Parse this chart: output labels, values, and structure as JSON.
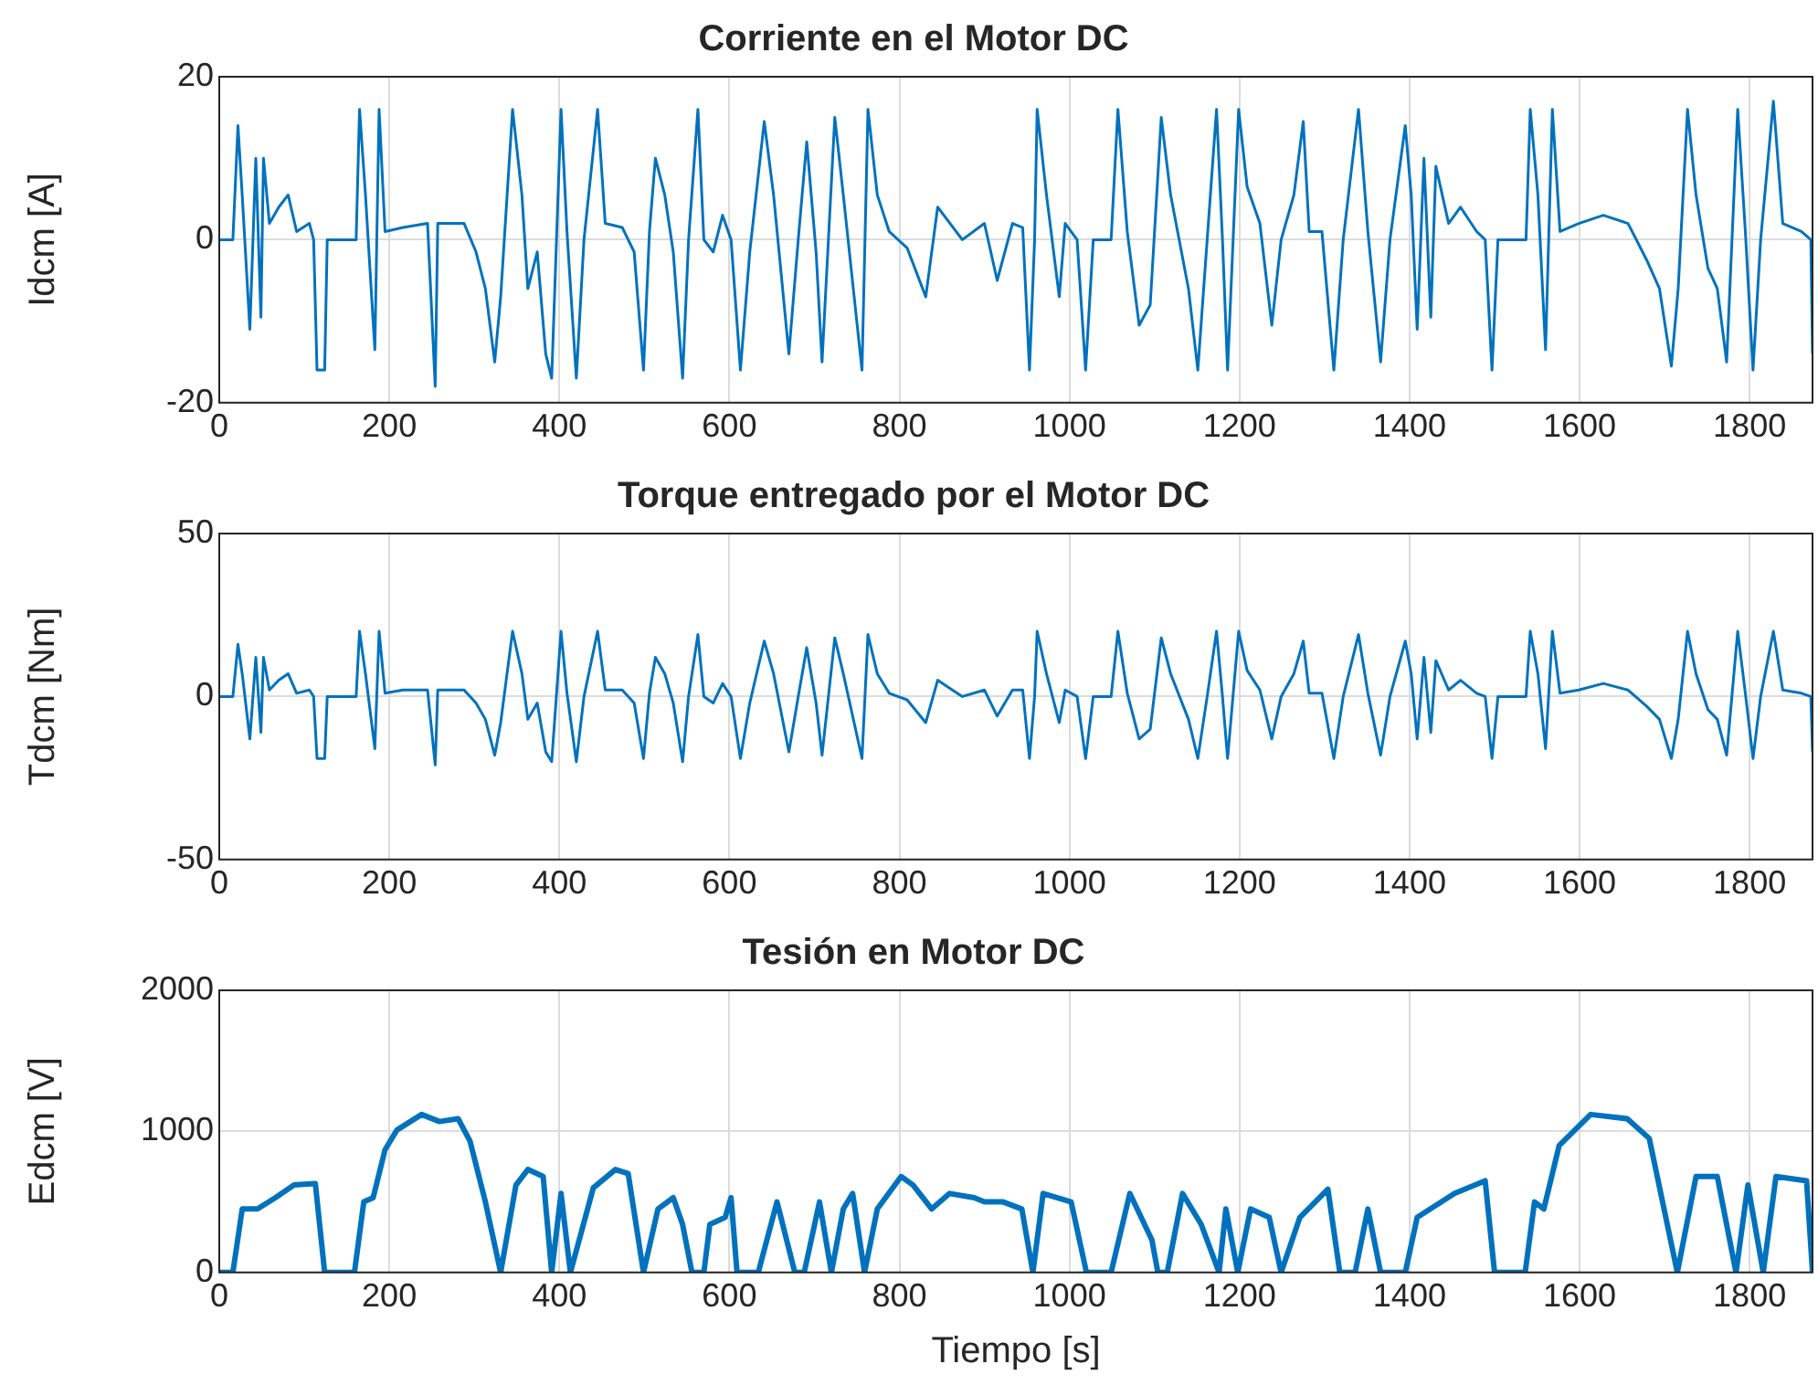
{
  "chart_data": [
    {
      "type": "line",
      "title": "Corriente en el Motor DC",
      "ylabel": "Idcm [A]",
      "color": "#0072bd",
      "marker": "none",
      "grid": true,
      "xlim": [
        0,
        1874
      ],
      "xticks": [
        0,
        200,
        400,
        600,
        800,
        1000,
        1200,
        1400,
        1600,
        1800
      ],
      "ylim": [
        -20,
        20
      ],
      "yticks": [
        -20,
        0,
        20
      ],
      "x": [
        0,
        16,
        22,
        27,
        36,
        43,
        49,
        52,
        59,
        70,
        81,
        91,
        106,
        111,
        115,
        124,
        127,
        161,
        165,
        172,
        183,
        188,
        195,
        216,
        245,
        254,
        257,
        288,
        302,
        313,
        324,
        331,
        345,
        356,
        363,
        374,
        384,
        391,
        402,
        409,
        420,
        429,
        445,
        454,
        474,
        488,
        499,
        506,
        513,
        524,
        534,
        545,
        552,
        563,
        570,
        581,
        592,
        602,
        613,
        624,
        641,
        652,
        670,
        681,
        691,
        702,
        709,
        724,
        734,
        756,
        763,
        774,
        788,
        809,
        831,
        845,
        874,
        900,
        915,
        933,
        945,
        953,
        959,
        962,
        973,
        988,
        995,
        1009,
        1019,
        1028,
        1049,
        1057,
        1068,
        1082,
        1095,
        1108,
        1119,
        1140,
        1151,
        1162,
        1173,
        1180,
        1186,
        1199,
        1209,
        1224,
        1238,
        1249,
        1264,
        1275,
        1282,
        1297,
        1311,
        1322,
        1340,
        1351,
        1366,
        1377,
        1395,
        1402,
        1409,
        1417,
        1425,
        1431,
        1446,
        1460,
        1479,
        1489,
        1497,
        1504,
        1537,
        1542,
        1551,
        1560,
        1568,
        1577,
        1599,
        1628,
        1657,
        1679,
        1694,
        1708,
        1716,
        1727,
        1737,
        1751,
        1762,
        1773,
        1786,
        1795,
        1804,
        1813,
        1828,
        1839,
        1861,
        1872,
        1874
      ],
      "values": [
        0,
        0,
        14,
        5.5,
        -11,
        10,
        -9.5,
        10,
        2,
        4,
        5.5,
        1,
        2,
        0,
        -16,
        -16,
        0,
        0,
        16,
        5.5,
        -13.5,
        16,
        1,
        1.5,
        2,
        -18,
        2,
        2,
        -1.5,
        -6,
        -15,
        -7,
        16,
        5.5,
        -6,
        -1.5,
        -14,
        -17,
        16,
        1,
        -17,
        0,
        16,
        2,
        1.5,
        -1.5,
        -16,
        1,
        10,
        5.5,
        -1.5,
        -17,
        0,
        16,
        0,
        -1.5,
        3,
        0,
        -16,
        -1.5,
        14.5,
        5.5,
        -14,
        0,
        12,
        -1.5,
        -15,
        15,
        5.5,
        -16,
        16,
        5.5,
        1,
        -1,
        -7,
        4,
        0,
        2,
        -5,
        2,
        1.5,
        -16,
        0,
        16,
        5.5,
        -7,
        2,
        0,
        -16,
        0,
        0,
        16,
        1,
        -10.5,
        -8,
        15,
        5.5,
        -6,
        -16,
        0,
        16,
        0,
        -16,
        16,
        6.5,
        2,
        -10.5,
        0,
        5.5,
        14.5,
        1,
        1,
        -16,
        0,
        16,
        1,
        -15,
        0,
        14,
        5.5,
        -11,
        10,
        -9.5,
        9,
        2,
        4,
        1,
        0,
        -16,
        0,
        0,
        16,
        5.5,
        -13.5,
        16,
        1,
        2,
        3,
        2,
        -2.5,
        -6,
        -15.5,
        -6,
        16,
        5.5,
        -3.5,
        -6,
        -15,
        16,
        1,
        -16,
        0,
        17,
        2,
        1,
        0,
        -14
      ]
    },
    {
      "type": "line",
      "title": "Torque entregado por el Motor DC",
      "ylabel": "Tdcm [Nm]",
      "color": "#0072bd",
      "marker": "none",
      "grid": true,
      "xlim": [
        0,
        1874
      ],
      "xticks": [
        0,
        200,
        400,
        600,
        800,
        1000,
        1200,
        1400,
        1600,
        1800
      ],
      "ylim": [
        -50,
        50
      ],
      "yticks": [
        -50,
        0,
        50
      ],
      "x": [
        0,
        16,
        22,
        27,
        36,
        43,
        49,
        52,
        59,
        70,
        81,
        91,
        106,
        111,
        115,
        124,
        127,
        161,
        165,
        172,
        183,
        188,
        195,
        216,
        245,
        254,
        257,
        288,
        302,
        313,
        324,
        331,
        345,
        356,
        363,
        374,
        384,
        391,
        402,
        409,
        420,
        429,
        445,
        454,
        474,
        488,
        499,
        506,
        513,
        524,
        534,
        545,
        552,
        563,
        570,
        581,
        592,
        602,
        613,
        624,
        641,
        652,
        670,
        681,
        691,
        702,
        709,
        724,
        734,
        756,
        763,
        774,
        788,
        809,
        831,
        845,
        874,
        900,
        915,
        933,
        945,
        953,
        959,
        962,
        973,
        988,
        995,
        1009,
        1019,
        1028,
        1049,
        1057,
        1068,
        1082,
        1095,
        1108,
        1119,
        1140,
        1151,
        1162,
        1173,
        1180,
        1186,
        1199,
        1209,
        1224,
        1238,
        1249,
        1264,
        1275,
        1282,
        1297,
        1311,
        1322,
        1340,
        1351,
        1366,
        1377,
        1395,
        1402,
        1409,
        1417,
        1425,
        1431,
        1446,
        1460,
        1479,
        1489,
        1497,
        1504,
        1537,
        1542,
        1551,
        1560,
        1568,
        1577,
        1599,
        1628,
        1657,
        1679,
        1694,
        1708,
        1716,
        1727,
        1737,
        1751,
        1762,
        1773,
        1786,
        1795,
        1804,
        1813,
        1828,
        1839,
        1861,
        1872,
        1874
      ],
      "values": [
        0,
        0,
        16,
        7,
        -13,
        12,
        -11,
        12,
        2,
        5,
        7,
        1,
        2,
        0,
        -19,
        -19,
        0,
        0,
        20,
        7,
        -16,
        20,
        1,
        2,
        2,
        -21,
        2,
        2,
        -2,
        -7,
        -18,
        -8,
        20,
        7,
        -7,
        -2,
        -17,
        -20,
        20,
        1,
        -20,
        0,
        20,
        2,
        2,
        -2,
        -19,
        1,
        12,
        7,
        -2,
        -20,
        0,
        19,
        0,
        -2,
        4,
        0,
        -19,
        -2,
        17,
        7,
        -17,
        0,
        15,
        -2,
        -18,
        18,
        7,
        -19,
        19,
        7,
        1,
        -1,
        -8,
        5,
        0,
        2,
        -6,
        2,
        2,
        -19,
        0,
        20,
        7,
        -8,
        2,
        0,
        -19,
        0,
        0,
        20,
        1,
        -13,
        -10,
        18,
        7,
        -7,
        -19,
        0,
        20,
        0,
        -19,
        20,
        8,
        2,
        -13,
        0,
        7,
        17,
        1,
        1,
        -19,
        0,
        19,
        1,
        -18,
        0,
        17,
        7,
        -13,
        12,
        -11,
        11,
        2,
        5,
        1,
        0,
        -19,
        0,
        0,
        20,
        7,
        -16,
        20,
        1,
        2,
        4,
        2,
        -3,
        -7,
        -19,
        -7,
        20,
        7,
        -4,
        -7,
        -18,
        20,
        1,
        -19,
        0,
        20,
        2,
        1,
        0,
        -17
      ]
    },
    {
      "type": "line",
      "title": "Tesión en Motor DC",
      "ylabel": "Edcm [V]",
      "xlabel": "Tiempo [s]",
      "color": "#0072bd",
      "marker": "none",
      "grid": true,
      "xlim": [
        0,
        1874
      ],
      "xticks": [
        0,
        200,
        400,
        600,
        800,
        1000,
        1200,
        1400,
        1600,
        1800
      ],
      "ylim": [
        0,
        2000
      ],
      "yticks": [
        0,
        1000,
        2000
      ],
      "x": [
        0,
        16,
        27,
        45,
        66,
        88,
        113,
        124,
        159,
        170,
        181,
        195,
        209,
        238,
        259,
        281,
        295,
        313,
        331,
        349,
        363,
        381,
        391,
        402,
        413,
        440,
        466,
        481,
        499,
        516,
        534,
        545,
        556,
        570,
        577,
        595,
        602,
        609,
        634,
        656,
        677,
        688,
        706,
        720,
        734,
        745,
        759,
        774,
        802,
        816,
        838,
        859,
        888,
        900,
        922,
        944,
        957,
        969,
        1002,
        1020,
        1049,
        1071,
        1097,
        1104,
        1115,
        1133,
        1155,
        1176,
        1184,
        1198,
        1213,
        1235,
        1249,
        1271,
        1304,
        1318,
        1336,
        1351,
        1366,
        1395,
        1409,
        1453,
        1489,
        1500,
        1536,
        1547,
        1558,
        1576,
        1613,
        1656,
        1682,
        1715,
        1737,
        1762,
        1784,
        1798,
        1816,
        1831,
        1867,
        1874
      ],
      "values": [
        0,
        0,
        450,
        450,
        530,
        620,
        630,
        0,
        0,
        500,
        530,
        870,
        1010,
        1120,
        1070,
        1090,
        930,
        500,
        0,
        620,
        730,
        680,
        0,
        560,
        0,
        600,
        730,
        700,
        0,
        450,
        530,
        340,
        0,
        0,
        340,
        390,
        530,
        0,
        0,
        500,
        0,
        0,
        500,
        0,
        450,
        560,
        0,
        450,
        680,
        620,
        450,
        560,
        530,
        500,
        500,
        450,
        0,
        560,
        500,
        0,
        0,
        560,
        230,
        0,
        0,
        560,
        340,
        0,
        450,
        0,
        450,
        390,
        0,
        390,
        590,
        0,
        0,
        450,
        0,
        0,
        390,
        560,
        650,
        0,
        0,
        500,
        450,
        900,
        1120,
        1090,
        950,
        0,
        680,
        680,
        0,
        620,
        0,
        680,
        650,
        0
      ]
    }
  ]
}
